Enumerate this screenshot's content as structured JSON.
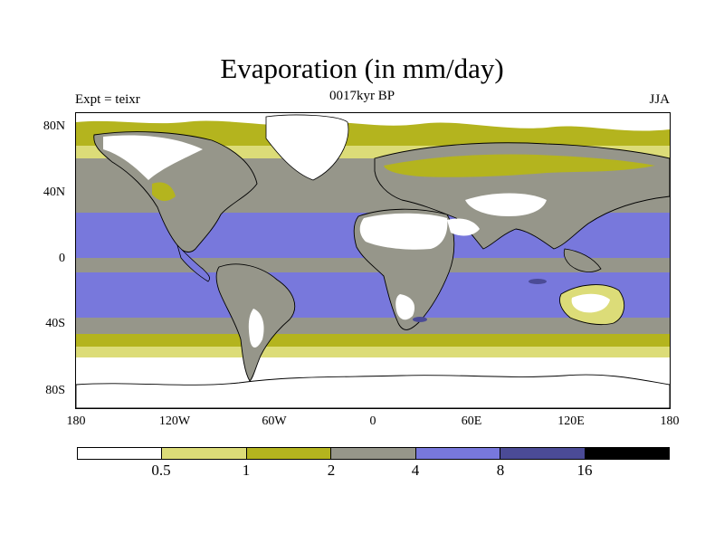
{
  "title": "Evaporation (in mm/day)",
  "subtitle": "0017kyr BP",
  "left_label": "Expt = teixr",
  "right_label": "JJA",
  "lat_ticks": [
    "80N",
    "40N",
    "0",
    "40S",
    "80S"
  ],
  "lon_ticks": [
    "180",
    "120W",
    "60W",
    "0",
    "60E",
    "120E",
    "180"
  ],
  "colorbar": {
    "colors": [
      "#ffffff",
      "#dcdc78",
      "#b4b41e",
      "#96968a",
      "#7878dc",
      "#4b4b96",
      "#000000"
    ],
    "labels": [
      "0.5",
      "1",
      "2",
      "4",
      "8",
      "16"
    ]
  }
}
